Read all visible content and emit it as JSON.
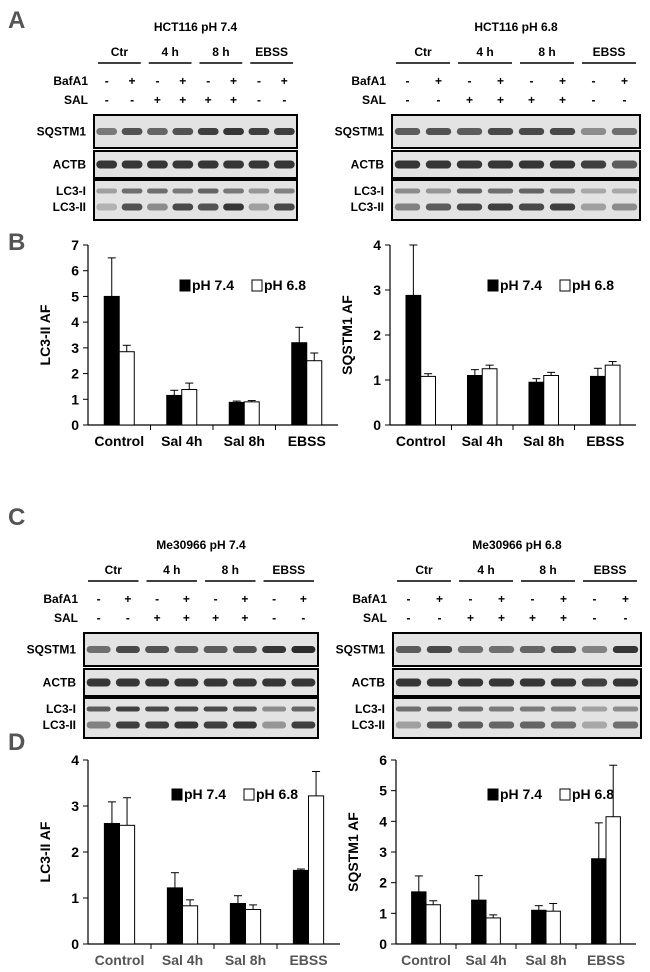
{
  "panel_letters": [
    "A",
    "B",
    "C",
    "D"
  ],
  "blot_group_labels": [
    "Ctr",
    "4 h",
    "8 h",
    "EBSS"
  ],
  "blot_row_labels": {
    "bafa1": "BafA1",
    "sal": "SAL"
  },
  "blot_band_labels": {
    "sqstm1": "SQSTM1",
    "actb": "ACTB",
    "lc3i": "LC3-I",
    "lc3ii": "LC3-II"
  },
  "blots": [
    {
      "title": "HCT116 pH 7.4",
      "bafa1": [
        "-",
        "+",
        "-",
        "+",
        "-",
        "+",
        "-",
        "+"
      ],
      "sal": [
        "-",
        "-",
        "+",
        "+",
        "+",
        "+",
        "-",
        "-"
      ]
    },
    {
      "title": "HCT116 pH 6.8",
      "bafa1": [
        "-",
        "+",
        "-",
        "+",
        "-",
        "+",
        "-",
        "+"
      ],
      "sal": [
        "-",
        "-",
        "+",
        "+",
        "+",
        "+",
        "-",
        "-"
      ]
    },
    {
      "title": "Me30966 pH 7.4",
      "bafa1": [
        "-",
        "+",
        "-",
        "+",
        "-",
        "+",
        "-",
        "+"
      ],
      "sal": [
        "-",
        "-",
        "+",
        "+",
        "+",
        "+",
        "-",
        "-"
      ]
    },
    {
      "title": "Me30966 pH 6.8",
      "bafa1": [
        "-",
        "+",
        "-",
        "+",
        "-",
        "+",
        "-",
        "+"
      ],
      "sal": [
        "-",
        "-",
        "+",
        "+",
        "+",
        "+",
        "-",
        "-"
      ]
    }
  ],
  "colors": {
    "ph74": "#000000",
    "ph68": "#ffffff",
    "band": "#222222"
  },
  "chart_data": [
    {
      "type": "bar",
      "ylabel": "LC3-II AF",
      "ylim": [
        0,
        7
      ],
      "yticks": [
        0,
        1,
        2,
        3,
        4,
        5,
        6,
        7
      ],
      "categories": [
        "Control",
        "Sal 4h",
        "Sal 8h",
        "EBSS"
      ],
      "series": [
        {
          "name": "pH 7.4",
          "values": [
            5.0,
            1.15,
            0.88,
            3.2
          ],
          "errors": [
            1.5,
            0.2,
            0.05,
            0.6
          ]
        },
        {
          "name": "pH 6.8",
          "values": [
            2.85,
            1.38,
            0.9,
            2.5
          ],
          "errors": [
            0.25,
            0.25,
            0.05,
            0.3
          ]
        }
      ],
      "legend": "top-right"
    },
    {
      "type": "bar",
      "ylabel": "SQSTM1 AF",
      "ylim": [
        0,
        4
      ],
      "yticks": [
        0,
        1,
        2,
        3,
        4
      ],
      "categories": [
        "Control",
        "Sal 4h",
        "Sal 8h",
        "EBSS"
      ],
      "series": [
        {
          "name": "pH 7.4",
          "values": [
            2.88,
            1.1,
            0.95,
            1.08
          ],
          "errors": [
            1.12,
            0.13,
            0.08,
            0.18
          ]
        },
        {
          "name": "pH 6.8",
          "values": [
            1.08,
            1.25,
            1.1,
            1.33
          ],
          "errors": [
            0.06,
            0.08,
            0.07,
            0.08
          ]
        }
      ],
      "legend": "top-right"
    },
    {
      "type": "bar",
      "ylabel": "LC3-II AF",
      "ylim": [
        0,
        4
      ],
      "yticks": [
        0,
        1,
        2,
        3,
        4
      ],
      "categories": [
        "Control",
        "Sal 4h",
        "Sal 8h",
        "EBSS"
      ],
      "series": [
        {
          "name": "pH 7.4",
          "values": [
            2.62,
            1.22,
            0.88,
            1.6
          ],
          "errors": [
            0.47,
            0.33,
            0.17,
            0.03
          ]
        },
        {
          "name": "pH 6.8",
          "values": [
            2.58,
            0.83,
            0.75,
            3.22
          ],
          "errors": [
            0.6,
            0.13,
            0.1,
            0.53
          ]
        }
      ],
      "legend": "top-right"
    },
    {
      "type": "bar",
      "ylabel": "SQSTM1 AF",
      "ylim": [
        0,
        6
      ],
      "yticks": [
        0,
        1,
        2,
        3,
        4,
        5,
        6
      ],
      "categories": [
        "Control",
        "Sal 4h",
        "Sal 8h",
        "EBSS"
      ],
      "series": [
        {
          "name": "pH 7.4",
          "values": [
            1.7,
            1.43,
            1.1,
            2.78
          ],
          "errors": [
            0.52,
            0.8,
            0.15,
            1.17
          ]
        },
        {
          "name": "pH 6.8",
          "values": [
            1.28,
            0.85,
            1.07,
            4.15
          ],
          "errors": [
            0.13,
            0.1,
            0.25,
            1.68
          ]
        }
      ],
      "legend": "top-right"
    }
  ]
}
